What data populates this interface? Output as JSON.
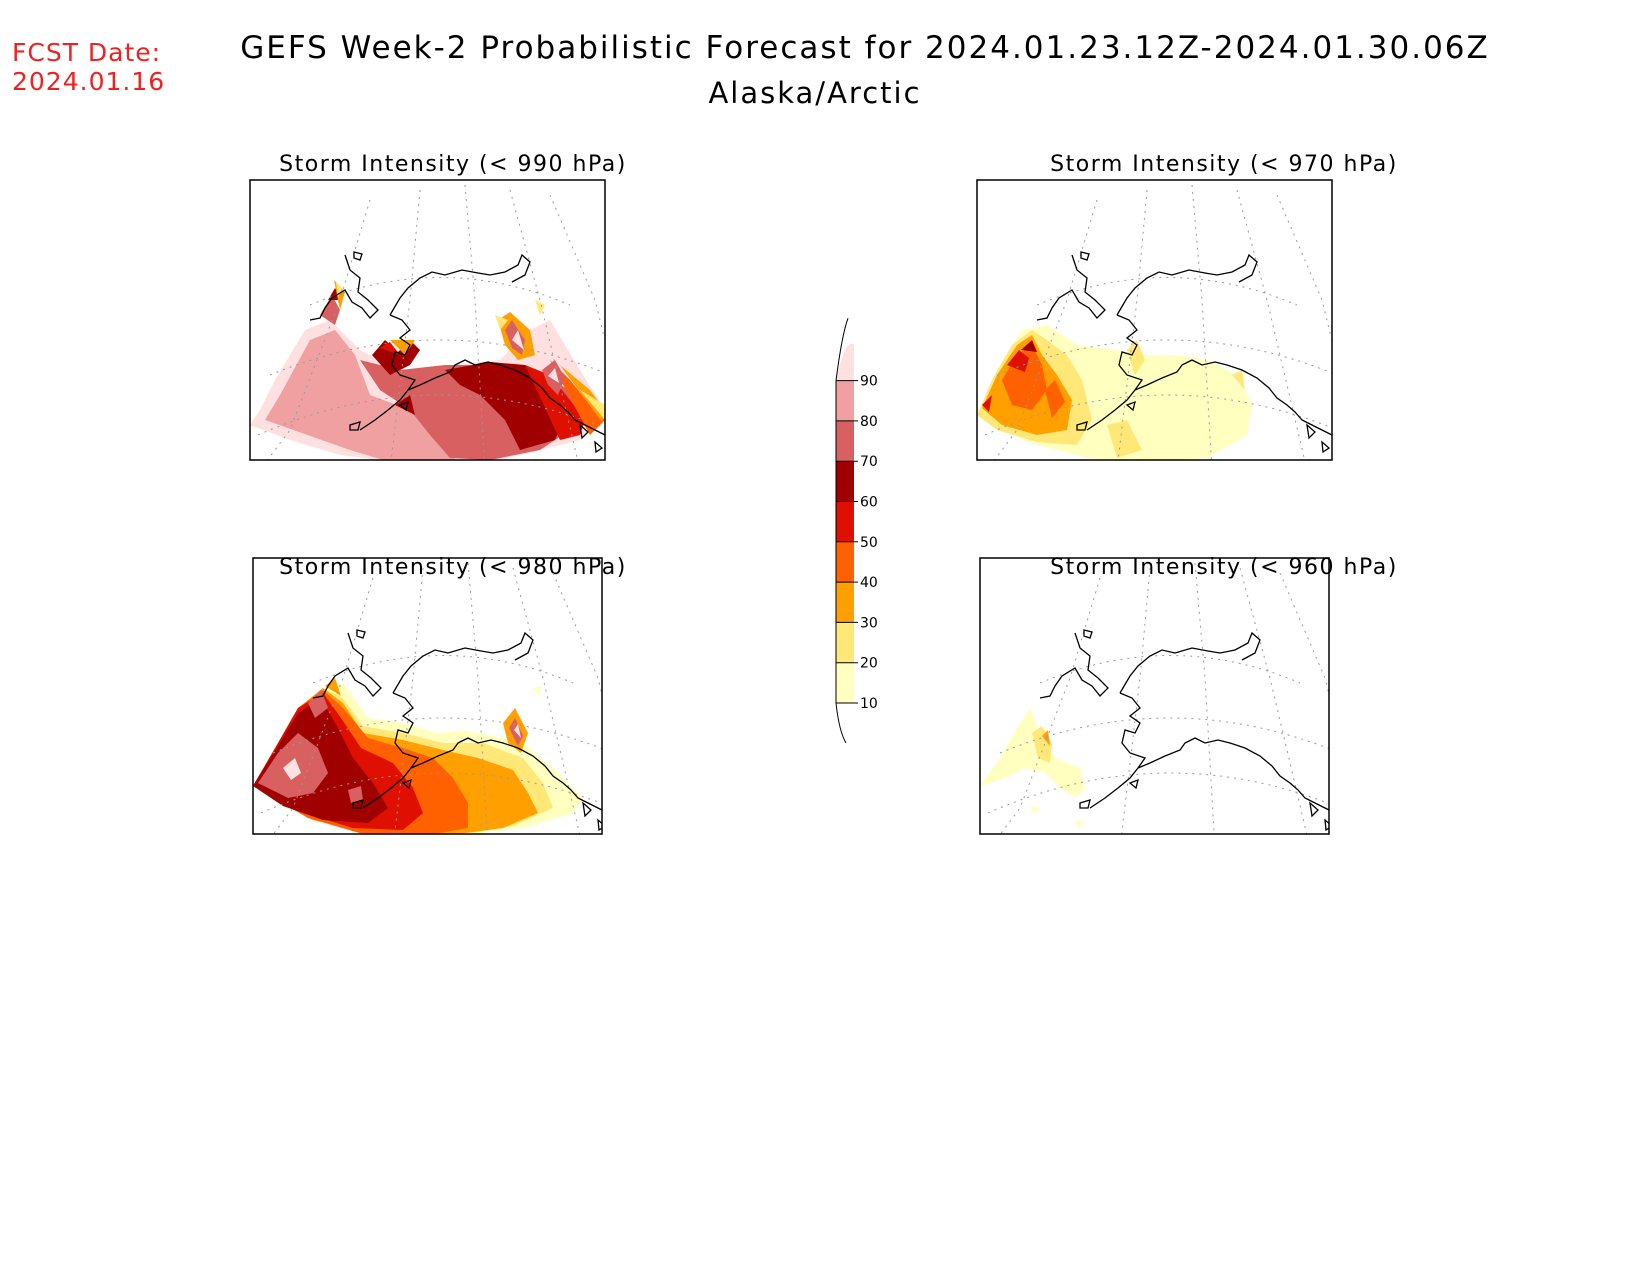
{
  "fcst_label": "FCST Date:",
  "fcst_date": "2024.01.16",
  "title": "GEFS Week-2 Probabilistic Forecast for 2024.01.23.12Z-2024.01.30.06Z",
  "subtitle": "Alaska/Arctic",
  "panels": [
    {
      "title": "Storm Intensity (< 990 hPa)"
    },
    {
      "title": "Storm Intensity (< 970 hPa)"
    },
    {
      "title": "Storm Intensity (< 980 hPa)"
    },
    {
      "title": "Storm Intensity (< 960 hPa)"
    }
  ],
  "colorbar": {
    "levels": [
      "10",
      "20",
      "30",
      "40",
      "50",
      "60",
      "70",
      "80",
      "90"
    ],
    "colors": [
      "#ffffc0",
      "#ffe878",
      "#ffa000",
      "#ff6000",
      "#e01000",
      "#a00000",
      "#d86060",
      "#f0a0a0",
      "#ffe0e0"
    ]
  }
}
